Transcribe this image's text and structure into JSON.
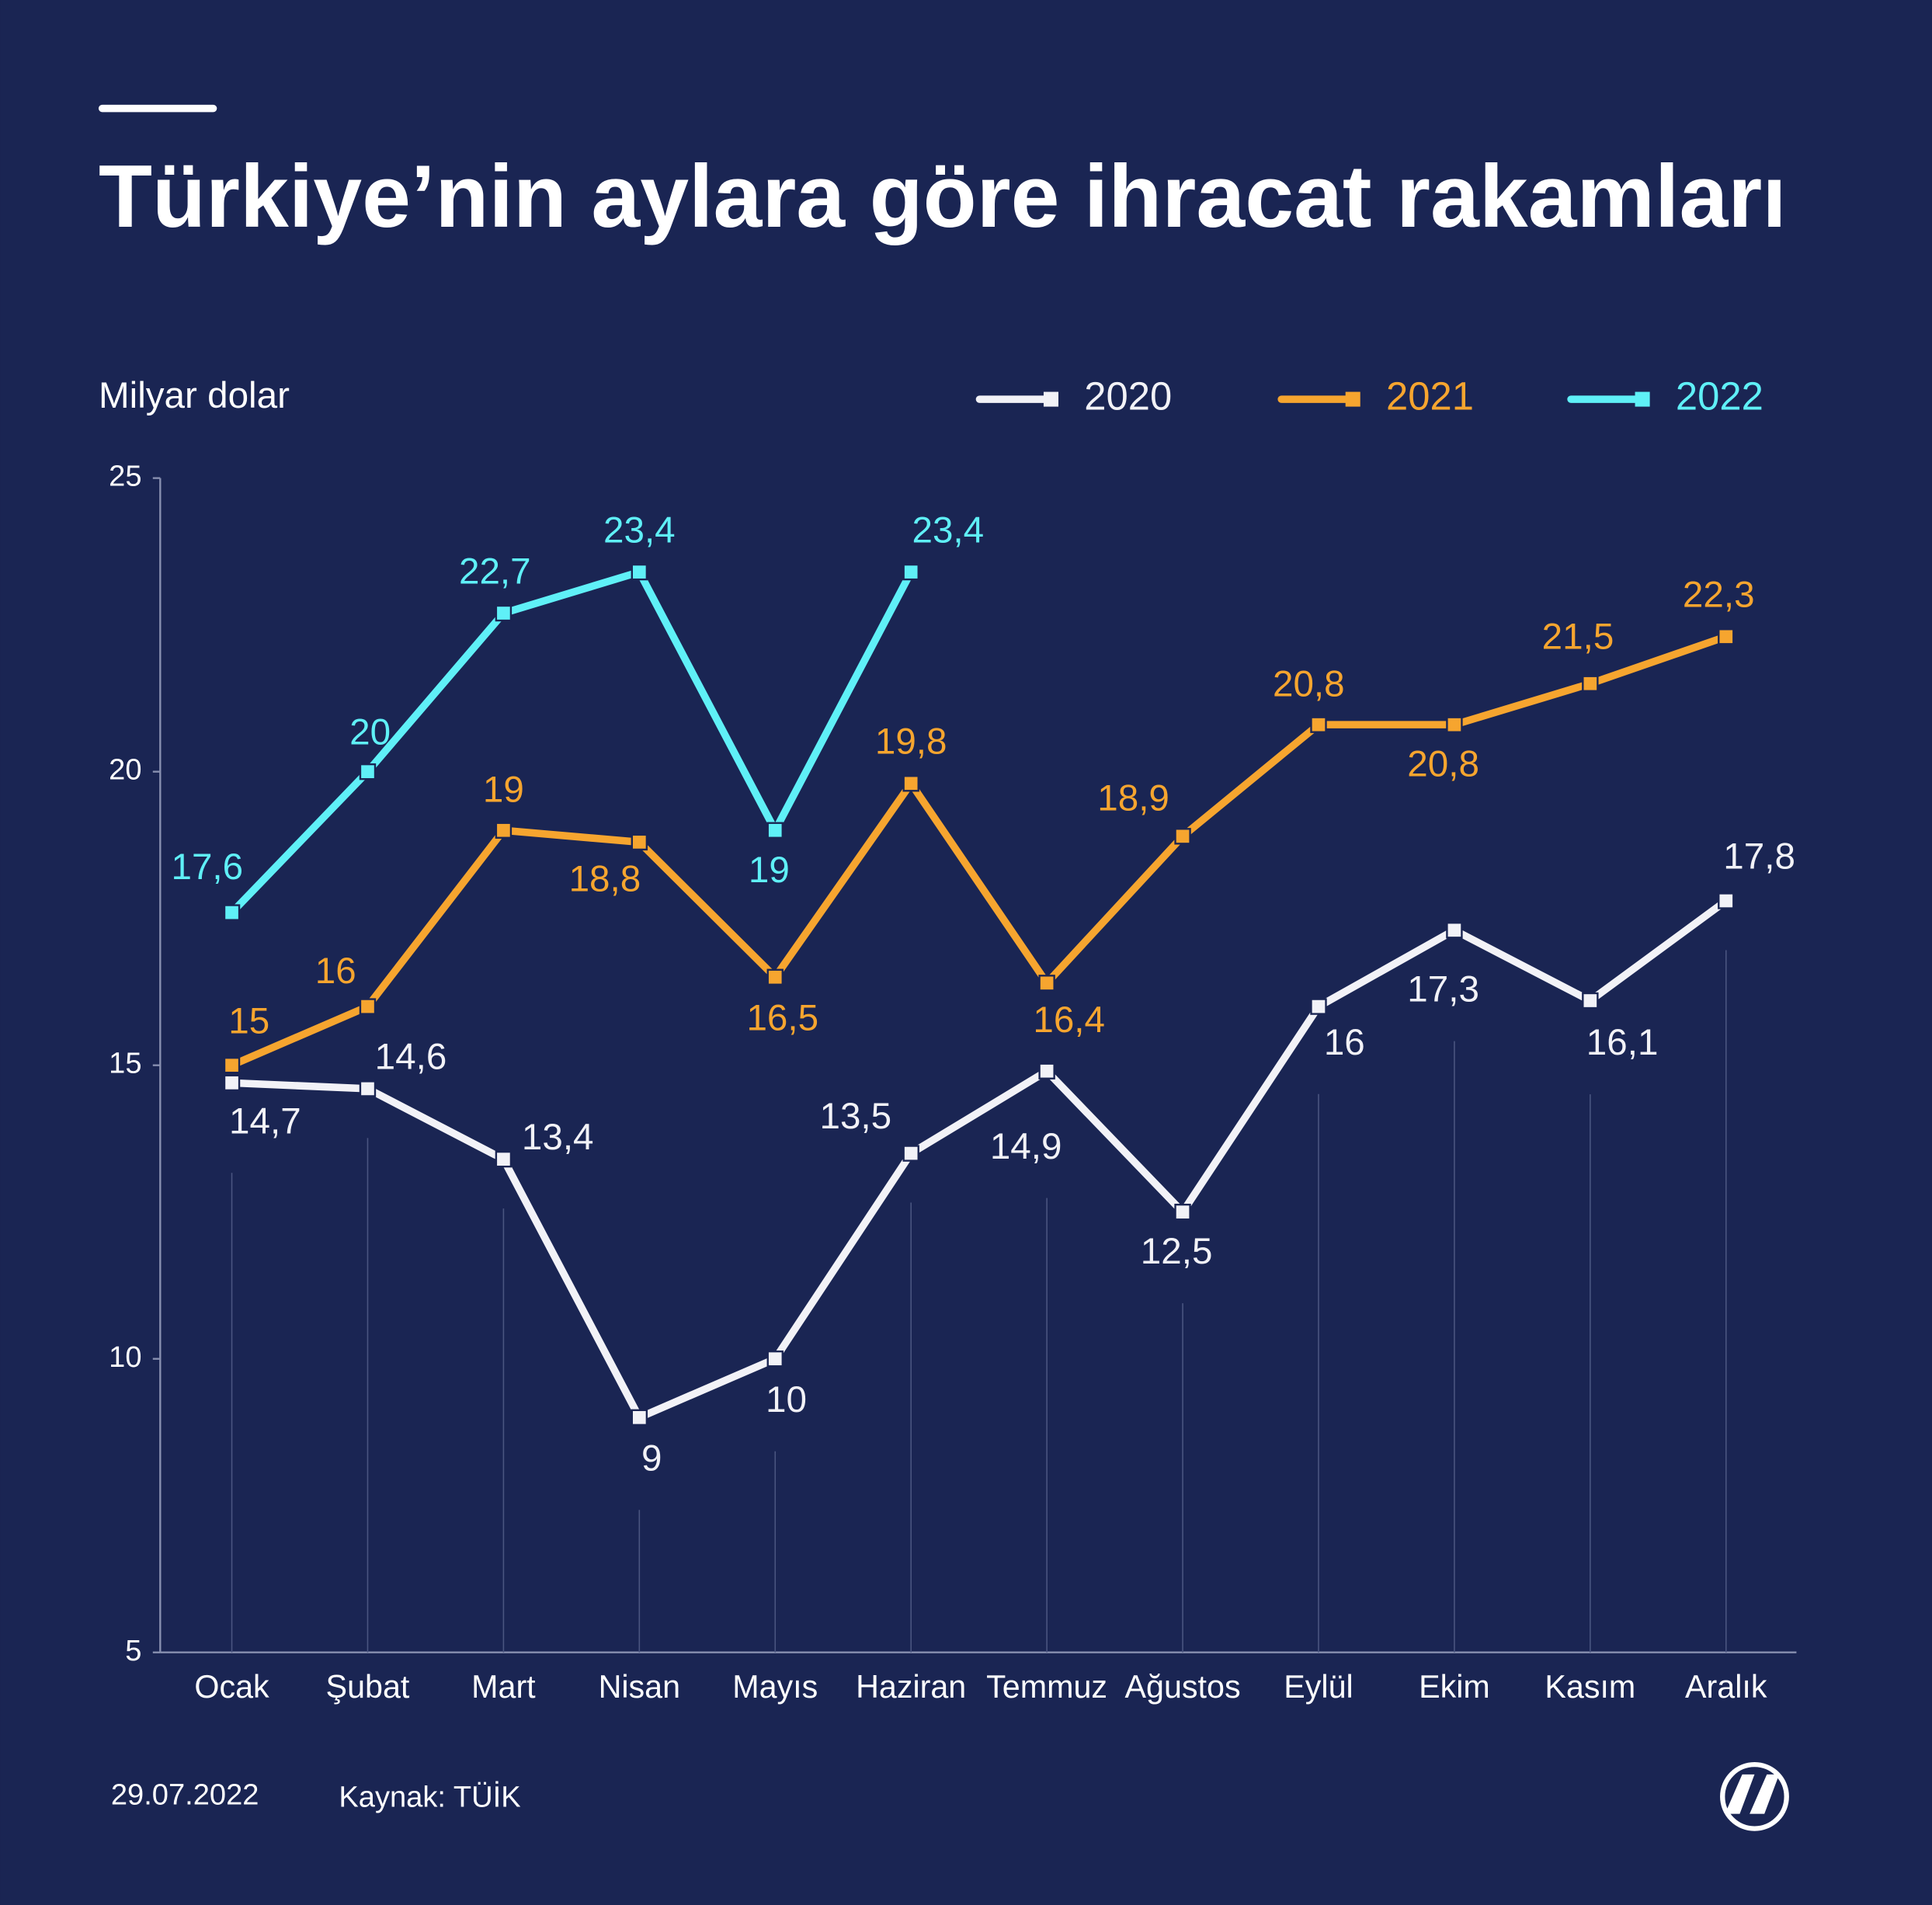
{
  "chart_data": {
    "type": "line",
    "title": "Türkiye’nin aylara göre ihracat rakamları",
    "y_label": "Milyar dolar",
    "categories": [
      "Ocak",
      "Şubat",
      "Mart",
      "Nisan",
      "Mayıs",
      "Haziran",
      "Temmuz",
      "Ağustos",
      "Eylül",
      "Ekim",
      "Kasım",
      "Aralık"
    ],
    "series": [
      {
        "name": "2020",
        "color": "#f2f2f7",
        "values": [
          14.7,
          14.6,
          13.4,
          9,
          10,
          13.5,
          14.9,
          12.5,
          16,
          17.3,
          16.1,
          17.8
        ],
        "value_labels": [
          "14,7",
          "14,6",
          "13,4",
          "9",
          "10",
          "13,5",
          "14,9",
          "12,5",
          "16",
          "17,3",
          "16,1",
          "17,8"
        ]
      },
      {
        "name": "2021",
        "color": "#f6a52f",
        "values": [
          15,
          16,
          19,
          18.8,
          16.5,
          19.8,
          16.4,
          18.9,
          20.8,
          20.8,
          21.5,
          22.3
        ],
        "value_labels": [
          "15",
          "16",
          "19",
          "18,8",
          "16,5",
          "19,8",
          "16,4",
          "18,9",
          "20,8",
          "20,8",
          "21,5",
          "22,3"
        ]
      },
      {
        "name": "2022",
        "color": "#5ff0f7",
        "values": [
          17.6,
          20,
          22.7,
          23.4,
          19,
          23.4,
          null,
          null,
          null,
          null,
          null,
          null
        ],
        "value_labels": [
          "17,6",
          "20",
          "22,7",
          "23,4",
          "19",
          "23,4",
          null,
          null,
          null,
          null,
          null,
          null
        ]
      }
    ],
    "ylim": [
      5,
      25
    ],
    "yticks": [
      5,
      10,
      15,
      20,
      25
    ],
    "date": "29.07.2022",
    "source": "Kaynak: TÜİK"
  }
}
